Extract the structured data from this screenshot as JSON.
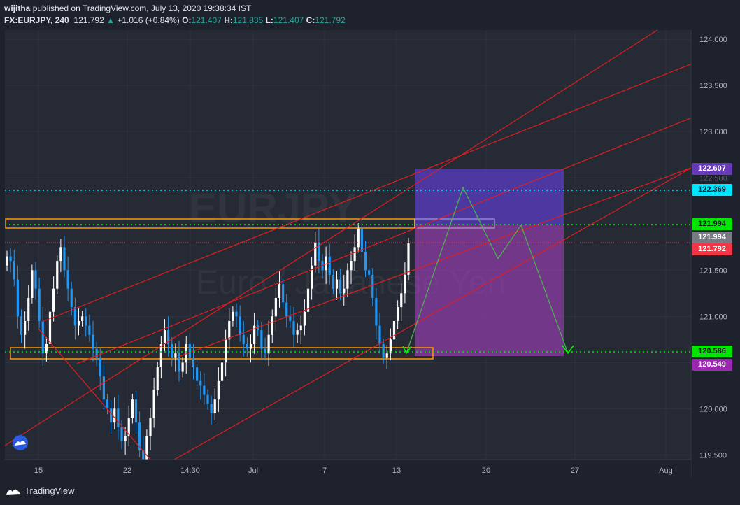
{
  "header": {
    "publisher": "wijitha",
    "published_text": "published on TradingView.com, July 13, 2020 19:38:34 IST",
    "symbol": "FX:EURJPY, 240",
    "last_price": "121.792",
    "change_arrow": "▲",
    "change": "+1.016 (+0.84%)",
    "o_label": "O:",
    "o_value": "121.407",
    "h_label": "H:",
    "h_value": "121.835",
    "l_label": "L:",
    "l_value": "121.407",
    "c_label": "C:",
    "c_value": "121.792"
  },
  "watermark": {
    "symbol": "EURJPY",
    "name": "Euro / Japanese Yen"
  },
  "price_axis": {
    "ticks": [
      "124.000",
      "123.500",
      "123.000",
      "122.500",
      "121.500",
      "121.000",
      "120.500",
      "120.000",
      "119.500"
    ]
  },
  "time_axis": {
    "ticks": [
      "15",
      "22",
      "14:30",
      "Jul",
      "7",
      "13",
      "20",
      "27",
      "Aug"
    ]
  },
  "price_tags": {
    "target": {
      "value": "122.607",
      "color": "#673ab7"
    },
    "resistance_cyan": {
      "value": "122.369",
      "color": "#00e5ff"
    },
    "green_top": {
      "value": "121.994",
      "color": "#00e600"
    },
    "last_close_gray": {
      "value": "121.994",
      "color": "#787b86"
    },
    "current": {
      "value": "121.792",
      "color": "#f23645"
    },
    "green_bottom": {
      "value": "120.586",
      "color": "#00e600"
    },
    "stop": {
      "value": "120.549",
      "color": "#9c27b0"
    }
  },
  "footer": {
    "brand": "TradingView"
  },
  "colors": {
    "background": "#1e222d",
    "grid": "#2a2e39",
    "channel": "#e01e1e",
    "zone_border": "#ff9800",
    "projection": "#4caf50",
    "candle_up": "#ffffff",
    "candle_down": "#2196f3"
  },
  "chart_data": {
    "type": "candlestick",
    "symbol": "FX:EURJPY",
    "interval": "240",
    "ylim": [
      119.45,
      124.1
    ],
    "closes": [
      121.65,
      121.6,
      121.4,
      121.0,
      120.8,
      120.95,
      121.2,
      121.5,
      121.3,
      120.95,
      120.6,
      120.7,
      121.05,
      121.3,
      121.6,
      121.75,
      121.5,
      121.3,
      121.1,
      120.9,
      120.95,
      121.0,
      120.9,
      120.8,
      120.65,
      120.55,
      120.35,
      120.1,
      120.0,
      119.85,
      120.0,
      119.8,
      119.65,
      119.7,
      119.9,
      120.1,
      119.85,
      119.55,
      119.45,
      119.7,
      119.9,
      120.2,
      120.45,
      120.7,
      120.85,
      120.7,
      120.55,
      120.6,
      120.4,
      120.5,
      120.7,
      120.55,
      120.45,
      120.3,
      120.25,
      120.15,
      120.05,
      119.95,
      120.1,
      120.3,
      120.5,
      120.75,
      120.95,
      121.05,
      121.0,
      120.8,
      120.7,
      120.65,
      120.7,
      120.9,
      120.85,
      120.65,
      120.6,
      120.8,
      121.0,
      121.2,
      121.35,
      121.15,
      121.0,
      120.95,
      120.8,
      120.85,
      120.9,
      121.05,
      121.3,
      121.55,
      121.8,
      121.6,
      121.5,
      121.65,
      121.45,
      121.3,
      121.4,
      121.25,
      121.3,
      121.5,
      121.6,
      121.75,
      121.95,
      121.7,
      121.5,
      121.45,
      121.2,
      120.9,
      120.7,
      120.55,
      120.6,
      120.75,
      120.95,
      121.1,
      121.25,
      121.45,
      121.79
    ],
    "horizontal_levels": [
      122.607,
      122.369,
      121.994,
      121.792,
      120.586,
      120.549
    ],
    "zones": [
      {
        "name": "resistance-zone",
        "from": 121.95,
        "to": 122.06
      },
      {
        "name": "support-zone",
        "from": 120.53,
        "to": 120.66
      }
    ],
    "trade_box": {
      "target": 122.607,
      "entry": 121.994,
      "stop": 120.549
    }
  }
}
